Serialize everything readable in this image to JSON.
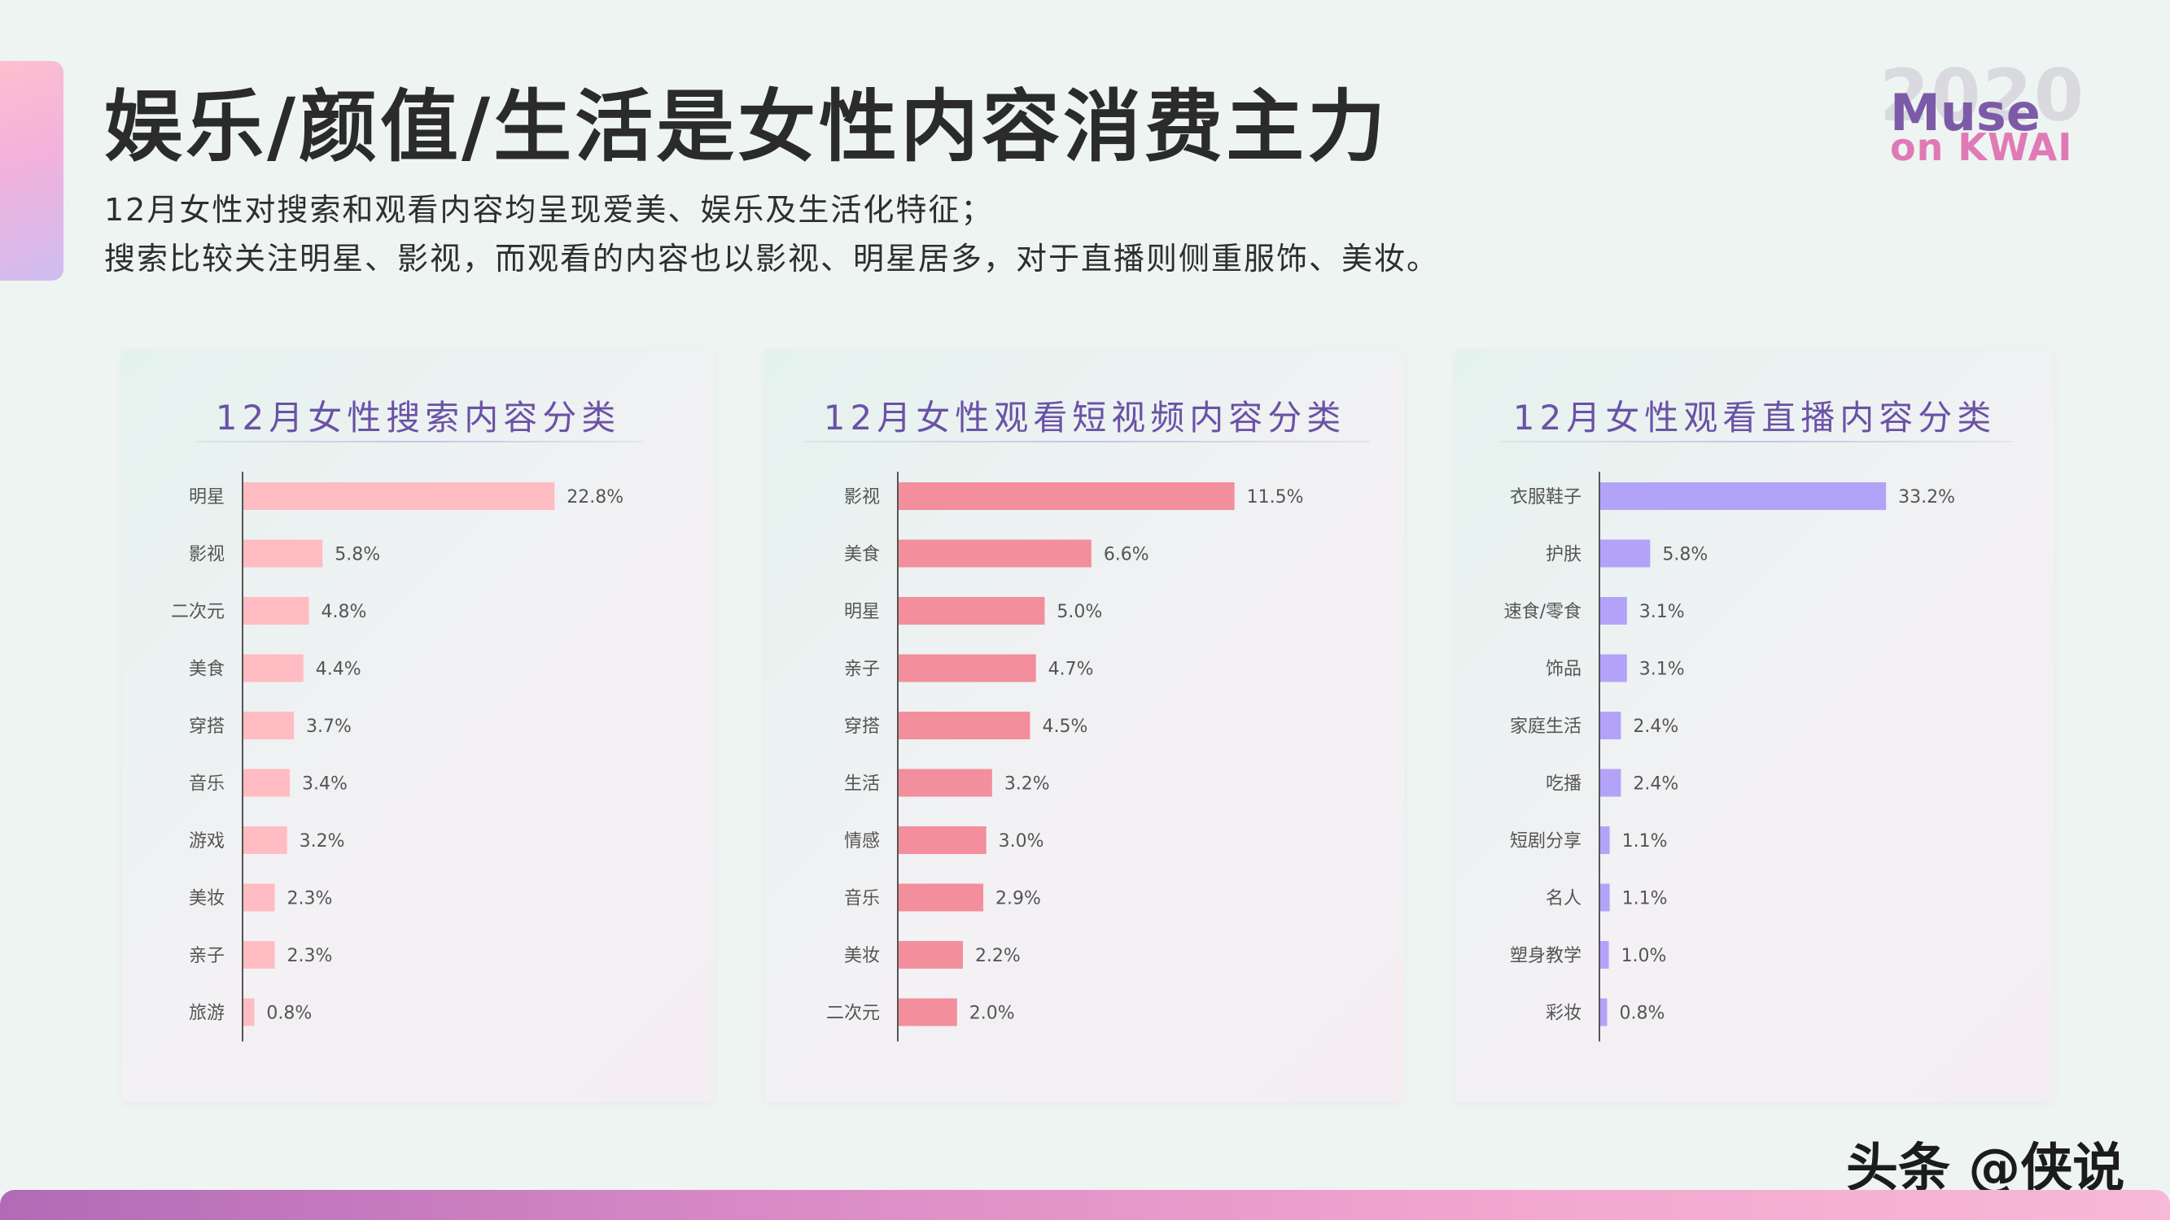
{
  "title": "娱乐/颜值/生活是女性内容消费主力",
  "subtitle_lines": [
    "12月女性对搜索和观看内容均呈现爱美、娱乐及生活化特征；",
    "搜索比较关注明星、影视，而观看的内容也以影视、明星居多，对于直播则侧重服饰、美妆。"
  ],
  "logo": {
    "year": "2020",
    "line1": "Muse",
    "line2": "on KWAI"
  },
  "watermark": "头条 @侠说",
  "colors": {
    "search": "#ffbcc2",
    "video": "#f38e9c",
    "live": "#b3a3f8"
  },
  "chart_data": [
    {
      "type": "bar",
      "orientation": "horizontal",
      "title": "12月女性搜索内容分类",
      "categories": [
        "明星",
        "影视",
        "二次元",
        "美食",
        "穿搭",
        "音乐",
        "游戏",
        "美妆",
        "亲子",
        "旅游"
      ],
      "values": [
        22.8,
        5.8,
        4.8,
        4.4,
        3.7,
        3.4,
        3.2,
        2.3,
        2.3,
        0.8
      ],
      "value_labels": [
        "22.8%",
        "5.8%",
        "4.8%",
        "4.4%",
        "3.7%",
        "3.4%",
        "3.2%",
        "2.3%",
        "2.3%",
        "0.8%"
      ],
      "unit": "%",
      "xlim": [
        0,
        34
      ],
      "color": "#ffbcc2"
    },
    {
      "type": "bar",
      "orientation": "horizontal",
      "title": "12月女性观看短视频内容分类",
      "categories": [
        "影视",
        "美食",
        "明星",
        "亲子",
        "穿搭",
        "生活",
        "情感",
        "音乐",
        "美妆",
        "二次元"
      ],
      "values": [
        11.5,
        6.6,
        5.0,
        4.7,
        4.5,
        3.2,
        3.0,
        2.9,
        2.2,
        2.0
      ],
      "value_labels": [
        "11.5%",
        "6.6%",
        "5.0%",
        "4.7%",
        "4.5%",
        "3.2%",
        "3.0%",
        "2.9%",
        "2.2%",
        "2.0%"
      ],
      "unit": "%",
      "xlim": [
        0,
        17
      ],
      "color": "#f38e9c"
    },
    {
      "type": "bar",
      "orientation": "horizontal",
      "title": "12月女性观看直播内容分类",
      "categories": [
        "衣服鞋子",
        "护肤",
        "速食/零食",
        "饰品",
        "家庭生活",
        "吃播",
        "短剧分享",
        "名人",
        "塑身教学",
        "彩妆"
      ],
      "values": [
        33.2,
        5.8,
        3.1,
        3.1,
        2.4,
        2.4,
        1.1,
        1.1,
        1.0,
        0.8
      ],
      "value_labels": [
        "33.2%",
        "5.8%",
        "3.1%",
        "3.1%",
        "2.4%",
        "2.4%",
        "1.1%",
        "1.1%",
        "1.0%",
        "0.8%"
      ],
      "unit": "%",
      "xlim": [
        0,
        52
      ],
      "color": "#b3a3f8"
    }
  ]
}
